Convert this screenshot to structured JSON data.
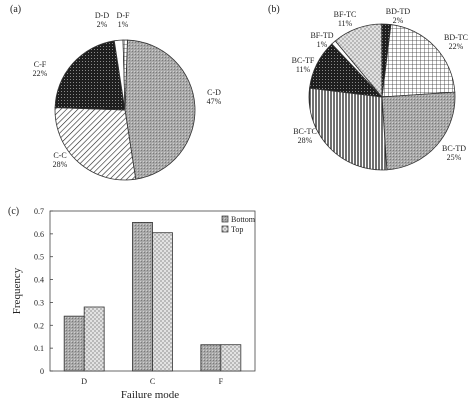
{
  "chart_data": [
    {
      "panel": "(a)",
      "type": "pie",
      "slices": [
        {
          "label": "C-D",
          "value": 47,
          "pct": "47%",
          "pattern": "gray"
        },
        {
          "label": "C-C",
          "value": 28,
          "pct": "28%",
          "pattern": "diag"
        },
        {
          "label": "C-F",
          "value": 22,
          "pct": "22%",
          "pattern": "dark"
        },
        {
          "label": "D-D",
          "value": 2,
          "pct": "2%",
          "pattern": "white"
        },
        {
          "label": "D-F",
          "value": 1,
          "pct": "1%",
          "pattern": "grid"
        }
      ]
    },
    {
      "panel": "(b)",
      "type": "pie",
      "slices": [
        {
          "label": "BD-TC",
          "value": 22,
          "pct": "22%",
          "pattern": "grid"
        },
        {
          "label": "BC-TD",
          "value": 25,
          "pct": "25%",
          "pattern": "gray"
        },
        {
          "label": "BC-TC",
          "value": 28,
          "pct": "28%",
          "pattern": "vert"
        },
        {
          "label": "BC-TF",
          "value": 11,
          "pct": "11%",
          "pattern": "dark"
        },
        {
          "label": "BF-TD",
          "value": 1,
          "pct": "1%",
          "pattern": "white"
        },
        {
          "label": "BF-TC",
          "value": 11,
          "pct": "11%",
          "pattern": "dots"
        },
        {
          "label": "BD-TD",
          "value": 2,
          "pct": "2%",
          "pattern": "dark"
        }
      ]
    },
    {
      "panel": "(c)",
      "type": "bar",
      "categories": [
        "D",
        "C",
        "F"
      ],
      "series": [
        {
          "name": "Bottom",
          "values": [
            0.24,
            0.65,
            0.115
          ],
          "pattern": "gray"
        },
        {
          "name": "Top",
          "values": [
            0.28,
            0.605,
            0.115
          ],
          "pattern": "dots"
        }
      ],
      "xlabel": "Failure mode",
      "ylabel": "Frequency",
      "ylim": [
        0,
        0.7
      ],
      "yticks": [
        "0",
        "0.1",
        "0.2",
        "0.3",
        "0.4",
        "0.5",
        "0.6",
        "0.7"
      ],
      "legend_position": "top-right"
    }
  ]
}
